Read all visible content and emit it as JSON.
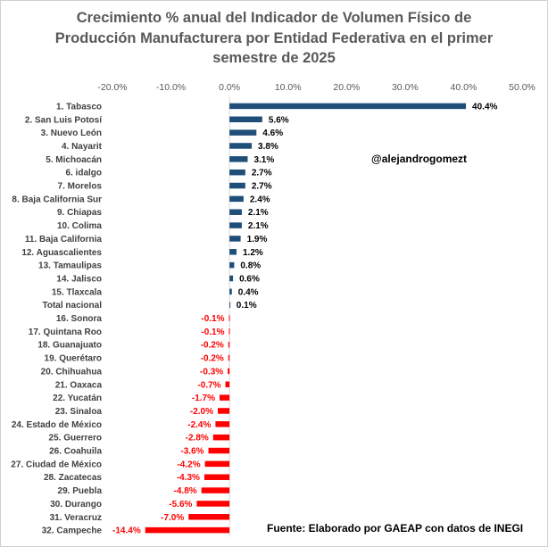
{
  "chart_data": {
    "type": "bar",
    "orientation": "horizontal",
    "title": "Crecimiento % anual del Indicador de Volumen Físico de\nProducción Manufacturera por Entidad Federativa en el primer\nsemestre de 2025",
    "xlim": [
      -20,
      50
    ],
    "x_ticks": [
      "-20.0%",
      "-10.0%",
      "0.0%",
      "10.0%",
      "20.0%",
      "30.0%",
      "40.0%",
      "50.0%"
    ],
    "tick_values": [
      -20,
      -10,
      0,
      10,
      20,
      30,
      40,
      50
    ],
    "grid": false,
    "categories": [
      "1. Tabasco",
      "2. San Luis Potosí",
      "3. Nuevo León",
      "4. Nayarit",
      "5. Michoacán",
      "6. idalgo",
      "7. Morelos",
      "8. Baja California Sur",
      "9. Chiapas",
      "10. Colima",
      "11. Baja California",
      "12. Aguascalientes",
      "13. Tamaulipas",
      "14. Jalisco",
      "15. Tlaxcala",
      "Total nacional",
      "16. Sonora",
      "17. Quintana Roo",
      "18. Guanajuato",
      "19. Querétaro",
      "20. Chihuahua",
      "21. Oaxaca",
      "22. Yucatán",
      "23. Sinaloa",
      "24. Estado de México",
      "25. Guerrero",
      "26. Coahuila",
      "27. Ciudad de México",
      "28. Zacatecas",
      "29. Puebla",
      "30. Durango",
      "31. Veracruz",
      "32. Campeche"
    ],
    "values": [
      40.4,
      5.6,
      4.6,
      3.8,
      3.1,
      2.7,
      2.7,
      2.4,
      2.1,
      2.1,
      1.9,
      1.2,
      0.8,
      0.6,
      0.4,
      0.1,
      -0.1,
      -0.1,
      -0.2,
      -0.2,
      -0.3,
      -0.7,
      -1.7,
      -2.0,
      -2.4,
      -2.8,
      -3.6,
      -4.2,
      -4.3,
      -4.8,
      -5.6,
      -7.0,
      -14.4
    ],
    "data_labels": [
      "40.4%",
      "5.6%",
      "4.6%",
      "3.8%",
      "3.1%",
      "2.7%",
      "2.7%",
      "2.4%",
      "2.1%",
      "2.1%",
      "1.9%",
      "1.2%",
      "0.8%",
      "0.6%",
      "0.4%",
      "0.1%",
      "-0.1%",
      "-0.1%",
      "-0.2%",
      "-0.2%",
      "-0.3%",
      "-0.7%",
      "-1.7%",
      "-2.0%",
      "-2.4%",
      "-2.8%",
      "-3.6%",
      "-4.2%",
      "-4.3%",
      "-4.8%",
      "-5.6%",
      "-7.0%",
      "-14.4%"
    ],
    "colors": {
      "positive": "#1f4e79",
      "negative": "#ff0000",
      "positive_label": "#000000",
      "negative_label": "#ff0000"
    },
    "annotation": "@alejandrogomezt",
    "source": "Fuente: Elaborado por GAEAP con datos de INEGI"
  }
}
